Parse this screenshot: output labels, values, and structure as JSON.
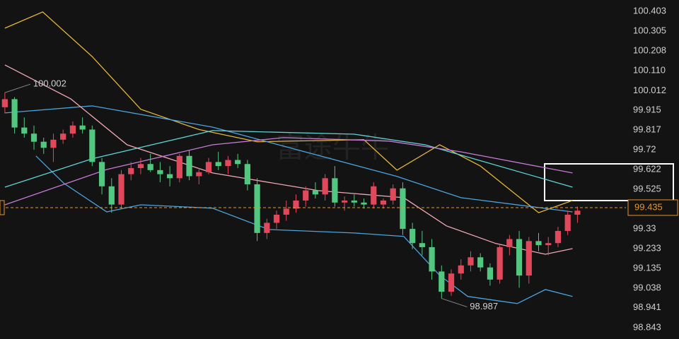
{
  "chart_data": {
    "type": "candlestick",
    "watermark": "富途牛牛",
    "up_color": "#e0485c",
    "down_color": "#52c77f",
    "ylim": [
      98.787,
      100.459
    ],
    "yticks": [
      {
        "value": 98.843,
        "label": "98.843"
      },
      {
        "value": 98.941,
        "label": "98.941"
      },
      {
        "value": 99.038,
        "label": "99.038"
      },
      {
        "value": 99.135,
        "label": "99.135"
      },
      {
        "value": 99.233,
        "label": "99.233"
      },
      99.33,
      {
        "value": 99.525,
        "label": "99.525"
      },
      {
        "value": 99.622,
        "label": "99.622"
      },
      99.72,
      {
        "value": 99.817,
        "label": "99.817"
      },
      {
        "value": 99.915,
        "label": "99.915"
      },
      {
        "value": 100.012,
        "label": "100.012"
      },
      {
        "value": 100.11,
        "label": "100.110"
      },
      {
        "value": 100.208,
        "label": "100.208"
      },
      {
        "value": 100.305,
        "label": "100.305"
      },
      {
        "value": 100.403,
        "label": "100.403"
      }
    ],
    "grid": false,
    "xlim": [
      -0.5,
      64
    ],
    "current_price": {
      "value": 99.435,
      "label": "99.435",
      "color": "#e8962a"
    },
    "annotations": [
      {
        "index": 0,
        "value": 100.002,
        "label": "100.002"
      },
      {
        "index": 45,
        "value": 98.987,
        "label": "98.987"
      }
    ],
    "ohlc": {
      "open": [
        99.93,
        99.97,
        99.83,
        99.8,
        99.76,
        99.73,
        99.77,
        99.8,
        99.84,
        99.82,
        99.66,
        99.54,
        99.45,
        99.6,
        99.63,
        99.65,
        99.62,
        99.6,
        99.58,
        99.69,
        99.59,
        99.61,
        99.66,
        99.64,
        99.67,
        99.65,
        99.55,
        99.31,
        99.36,
        99.4,
        99.43,
        99.47,
        99.52,
        99.5,
        99.58,
        99.46,
        99.47,
        99.46,
        99.45,
        99.45,
        99.47,
        99.53,
        99.33,
        99.26,
        99.24,
        99.12,
        99.02,
        99.11,
        99.15,
        99.19,
        99.14,
        99.08,
        99.24,
        99.28,
        99.1,
        99.27,
        99.25,
        99.26,
        99.32,
        99.4
      ],
      "high": [
        100.002,
        99.98,
        99.88,
        99.84,
        99.78,
        99.8,
        99.82,
        99.86,
        99.88,
        99.84,
        99.68,
        99.58,
        99.62,
        99.66,
        99.68,
        99.7,
        99.66,
        99.64,
        99.7,
        99.72,
        99.63,
        99.68,
        99.71,
        99.69,
        99.7,
        99.67,
        99.58,
        99.38,
        99.42,
        99.47,
        99.5,
        99.54,
        99.56,
        99.6,
        99.64,
        99.49,
        99.5,
        99.48,
        99.56,
        99.48,
        99.55,
        99.56,
        99.36,
        99.32,
        99.28,
        99.15,
        99.13,
        99.18,
        99.22,
        99.21,
        99.16,
        99.25,
        99.3,
        99.32,
        99.29,
        99.31,
        99.29,
        99.34,
        99.42,
        99.44
      ],
      "low": [
        99.9,
        99.8,
        99.78,
        99.72,
        99.7,
        99.66,
        99.75,
        99.78,
        99.8,
        99.64,
        99.5,
        99.41,
        99.43,
        99.57,
        99.6,
        99.61,
        99.56,
        99.54,
        99.56,
        99.57,
        99.55,
        99.6,
        99.62,
        99.6,
        99.63,
        99.52,
        99.27,
        99.28,
        99.33,
        99.37,
        99.41,
        99.44,
        99.48,
        99.47,
        99.44,
        99.42,
        99.44,
        99.43,
        99.43,
        99.43,
        99.45,
        99.3,
        99.23,
        99.2,
        99.08,
        98.987,
        99.0,
        99.08,
        99.12,
        99.12,
        99.05,
        99.06,
        99.2,
        99.04,
        99.06,
        99.22,
        99.2,
        99.24,
        99.3,
        99.36
      ],
      "close": [
        99.97,
        99.83,
        99.8,
        99.76,
        99.73,
        99.77,
        99.8,
        99.84,
        99.82,
        99.66,
        99.54,
        99.45,
        99.6,
        99.63,
        99.65,
        99.62,
        99.6,
        99.58,
        99.69,
        99.59,
        99.61,
        99.66,
        99.64,
        99.67,
        99.65,
        99.55,
        99.31,
        99.36,
        99.4,
        99.43,
        99.47,
        99.52,
        99.5,
        99.58,
        99.46,
        99.47,
        99.46,
        99.45,
        99.54,
        99.47,
        99.53,
        99.33,
        99.26,
        99.24,
        99.12,
        99.02,
        99.11,
        99.15,
        99.19,
        99.14,
        99.08,
        99.24,
        99.28,
        99.1,
        99.27,
        99.25,
        99.26,
        99.32,
        99.4,
        99.42
      ]
    },
    "lines": [
      {
        "color": "#e3b43a",
        "x": [
          0,
          3.9,
          9,
          14,
          20,
          26,
          37,
          40.4,
          44.8,
          49,
          55,
          58.5
        ],
        "values": [
          100.32,
          100.4,
          100.18,
          99.92,
          99.82,
          99.76,
          99.77,
          99.62,
          99.745,
          99.64,
          99.41,
          99.47
        ]
      },
      {
        "color": "#4ba3dc",
        "x": [
          0,
          9,
          21.4,
          40.4,
          47,
          58.5
        ],
        "values": [
          99.902,
          99.937,
          99.832,
          99.589,
          99.484,
          99.414
        ]
      },
      {
        "color": "#4ba3dc",
        "x": [
          3.2,
          6.1,
          10.5,
          14,
          21.4,
          27.2,
          36,
          41.1,
          44.8,
          47.7,
          52.8,
          55.7,
          58.5
        ],
        "values": [
          99.69,
          99.554,
          99.414,
          99.449,
          99.432,
          99.327,
          99.31,
          99.293,
          99.101,
          98.997,
          98.962,
          99.031,
          98.997
        ]
      },
      {
        "color": "#5fd3d3",
        "x": [
          0,
          9,
          21.4,
          36,
          43.3,
          58.5
        ],
        "values": [
          99.536,
          99.676,
          99.815,
          99.797,
          99.745,
          99.536
        ]
      },
      {
        "color": "#f0a8b4",
        "x": [
          0,
          6.8,
          12.6,
          21.4,
          32.3,
          41.1,
          45.5,
          50.6,
          55.7,
          58.5
        ],
        "values": [
          100.139,
          99.971,
          99.745,
          99.606,
          99.519,
          99.484,
          99.345,
          99.258,
          99.205,
          99.233
        ]
      },
      {
        "color": "#c77ad6",
        "x": [
          0,
          10.5,
          21.4,
          28.7,
          39.6,
          47,
          58.5
        ],
        "values": [
          99.449,
          99.623,
          99.745,
          99.78,
          99.763,
          99.71,
          99.606
        ]
      }
    ]
  }
}
